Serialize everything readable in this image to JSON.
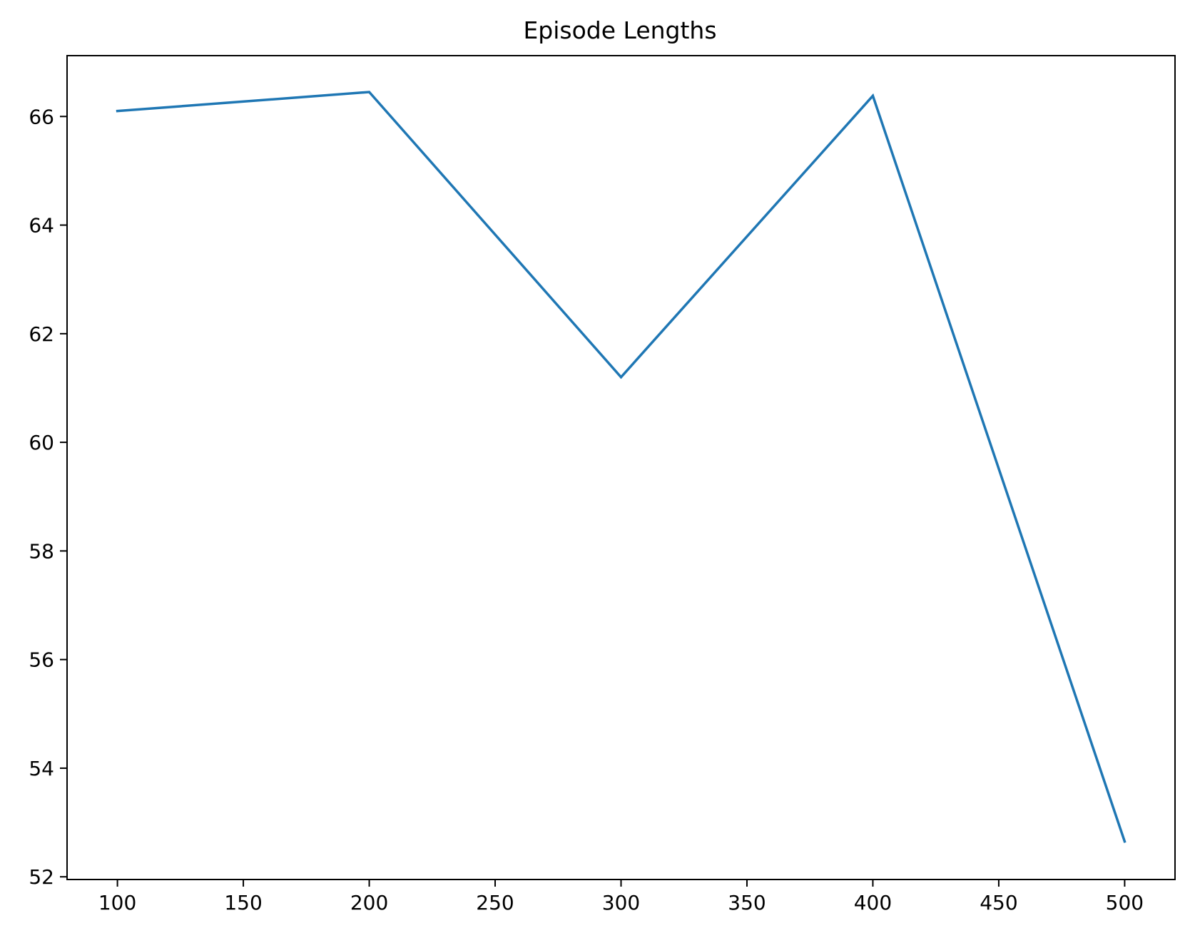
{
  "chart_data": {
    "type": "line",
    "title": "Episode Lengths",
    "xlabel": "",
    "ylabel": "",
    "x": [
      100,
      200,
      300,
      400,
      500
    ],
    "series": [
      {
        "values": [
          66.1,
          66.45,
          61.2,
          66.38,
          52.65
        ],
        "color": "#1f77b4"
      }
    ],
    "xlim": [
      80,
      520
    ],
    "ylim": [
      51.95,
      67.12
    ],
    "xticks": [
      100,
      150,
      200,
      250,
      300,
      350,
      400,
      450,
      500
    ],
    "yticks": [
      52,
      54,
      56,
      58,
      60,
      62,
      64,
      66
    ],
    "grid": false,
    "legend": "none"
  }
}
